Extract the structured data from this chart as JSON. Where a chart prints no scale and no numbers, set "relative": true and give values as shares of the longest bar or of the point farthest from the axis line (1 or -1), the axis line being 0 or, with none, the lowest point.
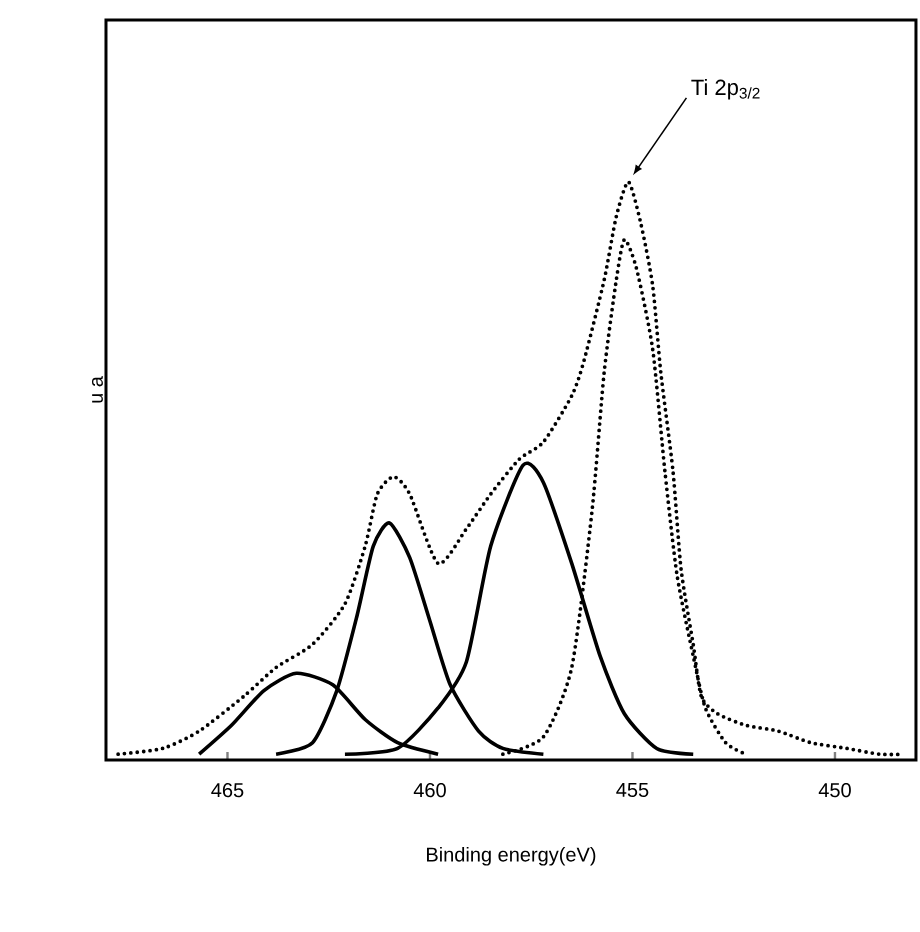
{
  "chart_data": {
    "type": "line",
    "xlabel": "Binding energy(eV)",
    "ylabel": "u a",
    "relative": true,
    "xlim": [
      468,
      448
    ],
    "xticks": [
      465,
      460,
      455,
      450
    ],
    "annotations": [
      {
        "text": "Ti 2p$_{3/2}$",
        "x": 455.1,
        "y": 1.0
      }
    ],
    "series": [
      {
        "color": "#000000",
        "line_style": "dotted",
        "x": [
          467.7,
          466.6,
          465.7,
          464.6,
          463.8,
          462.9,
          462.1,
          461.6,
          461.3,
          460.9,
          460.5,
          459.8,
          459.1,
          458.5,
          457.8,
          457.2,
          456.5,
          456.2,
          455.7,
          455.4,
          455.1,
          454.8,
          454.5,
          454.3,
          454.0,
          453.8,
          453.5,
          453.3,
          452.9,
          452.2,
          451.4,
          450.6,
          449.7,
          448.9,
          448.3
        ],
        "values": [
          0.01,
          0.02,
          0.05,
          0.11,
          0.16,
          0.2,
          0.27,
          0.37,
          0.46,
          0.49,
          0.46,
          0.34,
          0.4,
          0.46,
          0.52,
          0.55,
          0.63,
          0.69,
          0.83,
          0.94,
          1.0,
          0.93,
          0.82,
          0.67,
          0.5,
          0.33,
          0.2,
          0.11,
          0.08,
          0.06,
          0.05,
          0.03,
          0.02,
          0.01,
          0.01
        ]
      },
      {
        "color": "#000000",
        "line_style": "solid",
        "x": [
          465.7,
          464.9,
          464.1,
          463.3,
          462.4,
          461.6,
          460.8,
          459.8
        ],
        "values": [
          0.01,
          0.06,
          0.12,
          0.15,
          0.13,
          0.07,
          0.03,
          0.01
        ]
      },
      {
        "color": "#000000",
        "line_style": "solid",
        "x": [
          463.8,
          462.9,
          462.3,
          461.8,
          461.4,
          461.0,
          460.5,
          460.0,
          459.5,
          458.8,
          458.2,
          457.2
        ],
        "values": [
          0.01,
          0.03,
          0.12,
          0.25,
          0.37,
          0.41,
          0.35,
          0.24,
          0.13,
          0.05,
          0.02,
          0.01
        ]
      },
      {
        "color": "#000000",
        "line_style": "solid",
        "x": [
          462.1,
          460.8,
          459.8,
          459.1,
          458.5,
          457.7,
          457.2,
          456.5,
          455.8,
          455.2,
          454.4,
          453.5
        ],
        "values": [
          0.01,
          0.02,
          0.09,
          0.17,
          0.37,
          0.51,
          0.48,
          0.34,
          0.18,
          0.08,
          0.02,
          0.01
        ]
      },
      {
        "color": "#000000",
        "line_style": "dotted",
        "x": [
          458.2,
          457.2,
          456.5,
          456.0,
          455.7,
          455.4,
          455.2,
          454.9,
          454.5,
          454.2,
          453.9,
          453.5,
          453.2,
          452.7,
          452.2
        ],
        "values": [
          0.01,
          0.04,
          0.16,
          0.43,
          0.67,
          0.83,
          0.9,
          0.85,
          0.71,
          0.5,
          0.32,
          0.18,
          0.09,
          0.03,
          0.01
        ]
      }
    ]
  }
}
